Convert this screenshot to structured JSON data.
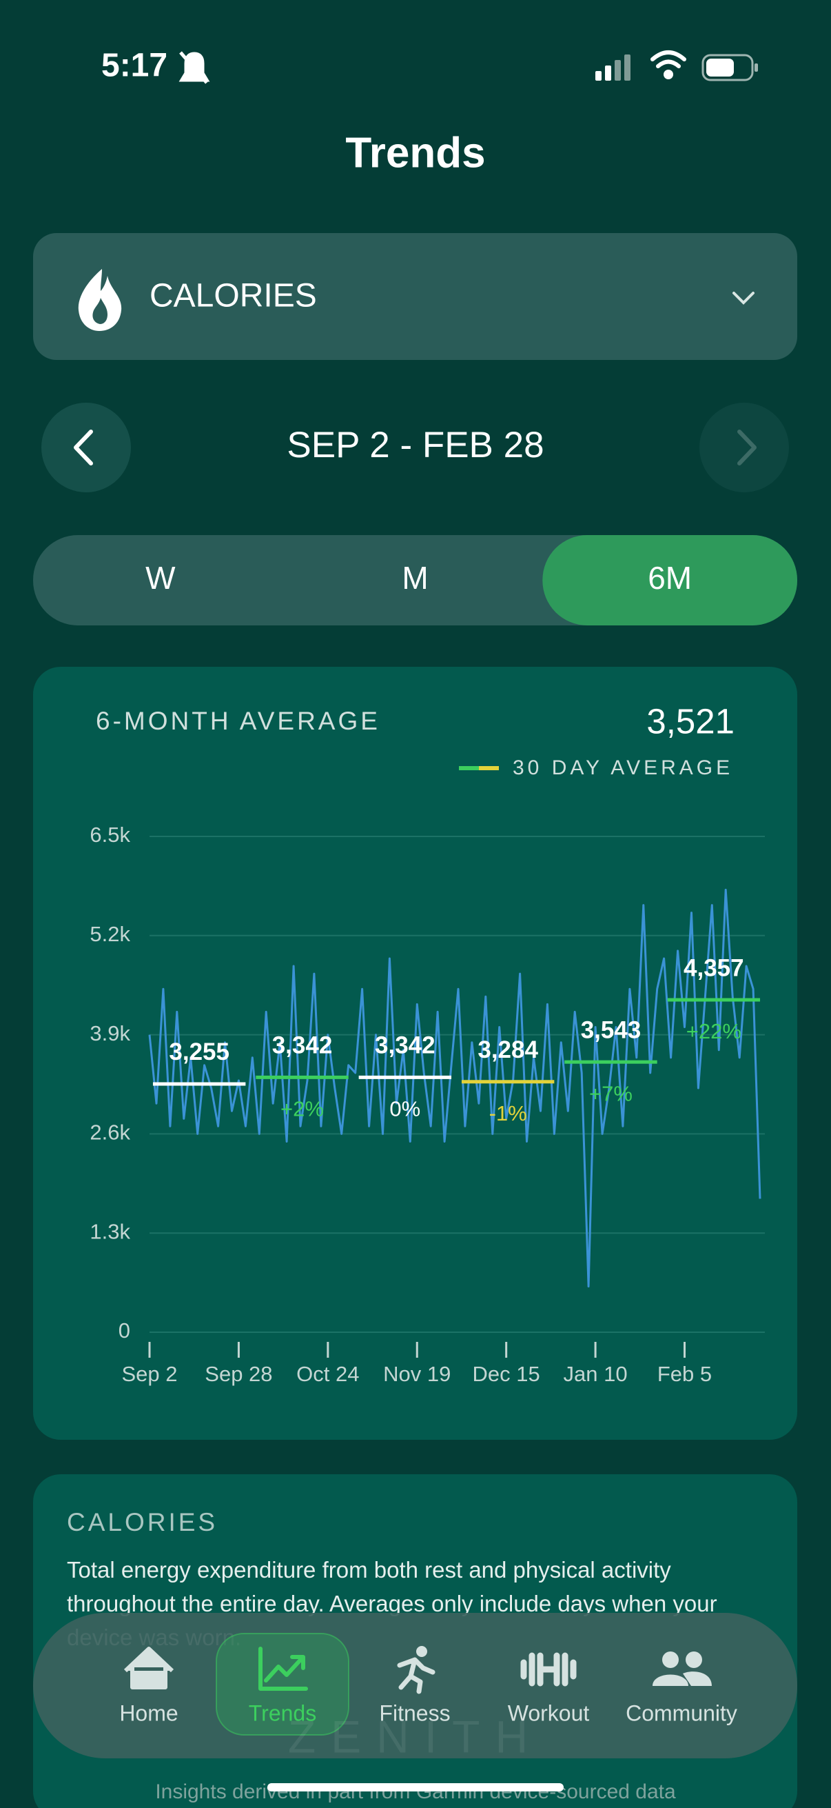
{
  "status_bar": {
    "time": "5:17"
  },
  "header": {
    "title": "Trends"
  },
  "metric_selector": {
    "label": "CALORIES"
  },
  "date_range": {
    "label": "SEP 2 - FEB 28"
  },
  "period_tabs": {
    "items": [
      "W",
      "M",
      "6M"
    ],
    "selected": 2
  },
  "chart_data": {
    "type": "line",
    "title": "6-MONTH AVERAGE",
    "summary": "3,521",
    "legend": "30 DAY AVERAGE",
    "legend_colors": [
      "#3ccf5e",
      "#e3d33a"
    ],
    "color": "#3b93d6",
    "x": [
      0,
      2,
      4,
      6,
      8,
      10,
      12,
      14,
      16,
      18,
      20,
      22,
      24,
      26,
      28,
      30,
      32,
      34,
      36,
      38,
      40,
      42,
      44,
      46,
      48,
      50,
      52,
      54,
      56,
      58,
      60,
      62,
      64,
      66,
      68,
      70,
      72,
      74,
      76,
      78,
      80,
      82,
      84,
      86,
      88,
      90,
      92,
      94,
      96,
      98,
      100,
      102,
      104,
      106,
      108,
      110,
      112,
      114,
      116,
      118,
      120,
      122,
      124,
      126,
      128,
      130,
      132,
      134,
      136,
      138,
      140,
      142,
      144,
      146,
      148,
      150,
      152,
      154,
      156,
      158,
      160,
      162,
      164,
      166,
      168,
      170,
      172,
      174,
      176,
      178
    ],
    "values": [
      3900,
      3000,
      4500,
      2700,
      4200,
      2800,
      3600,
      2600,
      3500,
      3200,
      2700,
      3800,
      2900,
      3300,
      2700,
      3600,
      2600,
      4200,
      3000,
      3800,
      2500,
      4800,
      2700,
      3300,
      4700,
      2700,
      3900,
      3200,
      2600,
      3500,
      3400,
      4500,
      2700,
      3900,
      2600,
      4900,
      3000,
      3700,
      2500,
      4300,
      3400,
      2700,
      4200,
      2500,
      3500,
      4500,
      2700,
      3800,
      3000,
      4400,
      2600,
      4000,
      2800,
      3300,
      4700,
      2500,
      3600,
      2900,
      4300,
      2600,
      3800,
      2900,
      4200,
      3400,
      600,
      4000,
      2600,
      3200,
      4000,
      2700,
      4500,
      3600,
      5600,
      3400,
      4500,
      4900,
      3600,
      5000,
      4000,
      5500,
      3200,
      4400,
      5600,
      3700,
      5800,
      4400,
      3600,
      4800,
      4500,
      1750
    ],
    "xlim": [
      0,
      179
    ],
    "ylim": [
      0,
      6500
    ],
    "xticks": [
      {
        "value": 0,
        "label": "Sep 2"
      },
      {
        "value": 26,
        "label": "Sep 28"
      },
      {
        "value": 52,
        "label": "Oct 24"
      },
      {
        "value": 78,
        "label": "Nov 19"
      },
      {
        "value": 104,
        "label": "Dec 15"
      },
      {
        "value": 130,
        "label": "Jan 10"
      },
      {
        "value": 156,
        "label": "Feb 5"
      }
    ],
    "yticks": [
      0,
      {
        "value": 1300,
        "label": "1.3k"
      },
      {
        "value": 2600,
        "label": "2.6k"
      },
      {
        "value": 3900,
        "label": "3.9k"
      },
      {
        "value": 5200,
        "label": "5.2k"
      },
      {
        "value": 6500,
        "label": "6.5k"
      }
    ],
    "grid": true,
    "averages": {
      "periods": [
        [
          1,
          28
        ],
        [
          31,
          58
        ],
        [
          61,
          88
        ],
        [
          91,
          118
        ],
        [
          121,
          148
        ],
        [
          151,
          178
        ]
      ],
      "values": [
        3255,
        3342,
        3342,
        3284,
        3543,
        4357
      ],
      "value_labels": [
        "3,255",
        "3,342",
        "3,342",
        "3,284",
        "3,543",
        "4,357"
      ],
      "change_labels": [
        null,
        "+2%",
        "0%",
        "-1%",
        "+7%",
        "+22%"
      ],
      "colors": [
        "#ffffff",
        "#3ccf5e",
        "#ffffff",
        "#e3d33a",
        "#3ccf5e",
        "#3ccf5e"
      ]
    }
  },
  "info": {
    "title": "CALORIES",
    "text": "Total energy expenditure from both rest and physical activity throughout the entire day. Averages only include days when your device was worn."
  },
  "tab_bar": {
    "items": [
      "Home",
      "Trends",
      "Fitness",
      "Workout",
      "Community"
    ],
    "selected": 1
  },
  "brand": "ZENITH",
  "footer": "Insights derived in part from Garmin device-sourced data"
}
